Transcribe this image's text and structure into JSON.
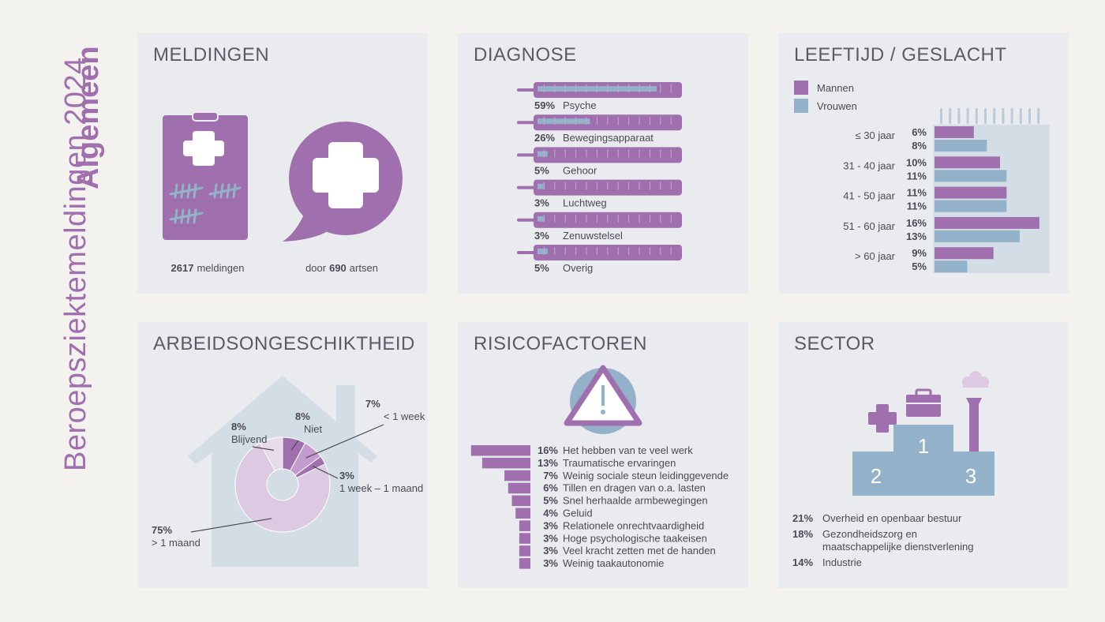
{
  "header": {
    "title": "Beroepsziektemeldingen 2024",
    "subtitle": "Algemeen"
  },
  "colors": {
    "purple": "#a06fae",
    "blue": "#93b1c9",
    "lightpurple": "#ddc9e2",
    "house": "#d3dde6",
    "bg": "#f4f2ef",
    "panel": "#eaebef"
  },
  "meldingen": {
    "title": "MELDINGEN",
    "count_value": "2617",
    "count_label": "meldingen",
    "artsen_prefix": "door",
    "artsen_value": "690",
    "artsen_label": "artsen",
    "icons": [
      "clipboard-cross-icon",
      "speech-bubble-cross-icon"
    ]
  },
  "diagnose": {
    "title": "DIAGNOSE",
    "chart_data": {
      "type": "bar",
      "categories": [
        "Psyche",
        "Bewegingsapparaat",
        "Gehoor",
        "Luchtweg",
        "Zenuwstelsel",
        "Overig"
      ],
      "values": [
        59,
        26,
        5,
        3,
        3,
        5
      ],
      "labels": [
        "59%",
        "26%",
        "5%",
        "3%",
        "3%",
        "5%"
      ],
      "unit": "%"
    }
  },
  "leeftijd": {
    "title": "LEEFTIJD / GESLACHT",
    "legend": [
      "Mannen",
      "Vrouwen"
    ],
    "chart_data": {
      "type": "bar",
      "categories": [
        "≤ 30 jaar",
        "31 - 40 jaar",
        "41 - 50 jaar",
        "51 - 60 jaar",
        "> 60 jaar"
      ],
      "series": [
        {
          "name": "Mannen",
          "values": [
            6,
            10,
            11,
            16,
            9
          ],
          "labels": [
            "6%",
            "10%",
            "11%",
            "16%",
            "9%"
          ]
        },
        {
          "name": "Vrouwen",
          "values": [
            8,
            11,
            11,
            13,
            5
          ],
          "labels": [
            "8%",
            "11%",
            "11%",
            "13%",
            "5%"
          ]
        }
      ],
      "legend": "top-left"
    }
  },
  "arbeid": {
    "title": "ARBEIDSONGESCHIKTHEID",
    "chart_data": {
      "type": "pie",
      "slices": [
        {
          "label": "Niet",
          "pct": "8%",
          "value": 8
        },
        {
          "label": "< 1 week",
          "pct": "7%",
          "value": 7
        },
        {
          "label": "1 week – 1 maand",
          "pct": "3%",
          "value": 3
        },
        {
          "label": "> 1 maand",
          "pct": "75%",
          "value": 75
        },
        {
          "label": "Blijvend",
          "pct": "8%",
          "value": 8
        }
      ]
    }
  },
  "risico": {
    "title": "RISICOFACTOREN",
    "chart_data": {
      "type": "bar",
      "categories": [
        "Het hebben van te veel werk",
        "Traumatische ervaringen",
        "Weinig sociale steun leidinggevende",
        "Tillen en dragen van o.a. lasten",
        "Snel herhaalde armbewegingen",
        "Geluid",
        "Relationele onrechtvaardigheid",
        "Hoge psychologische taakeisen",
        "Veel kracht zetten met de handen",
        "Weinig taakautonomie"
      ],
      "values": [
        16,
        13,
        7,
        6,
        5,
        4,
        3,
        3,
        3,
        3
      ],
      "labels": [
        "16%",
        "13%",
        "7%",
        "6%",
        "5%",
        "4%",
        "3%",
        "3%",
        "3%",
        "3%"
      ]
    }
  },
  "sector": {
    "title": "SECTOR",
    "podium": [
      "1",
      "2",
      "3"
    ],
    "items": [
      {
        "pct": "21%",
        "lines": [
          "Overheid en openbaar bestuur"
        ]
      },
      {
        "pct": "18%",
        "lines": [
          "Gezondheidszorg en",
          "maatschappelijke dienstverlening"
        ]
      },
      {
        "pct": "14%",
        "lines": [
          "Industrie"
        ]
      }
    ]
  }
}
